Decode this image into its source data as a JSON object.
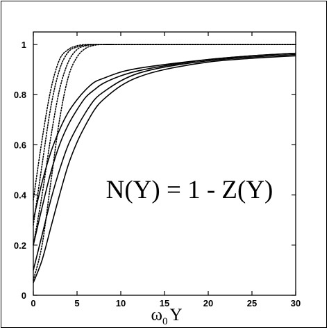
{
  "chart_data": {
    "type": "line",
    "title": "",
    "annotation": "N(Y) = 1 - Z(Y)",
    "xlabel": {
      "main": "ω",
      "sub": "0",
      "suffix": "Y"
    },
    "ylabel": "",
    "xlim": [
      0,
      30
    ],
    "ylim": [
      0,
      1.05
    ],
    "x_ticks": [
      0,
      5,
      10,
      15,
      20,
      25,
      30
    ],
    "y_ticks": [
      0,
      0.2,
      0.4,
      0.6,
      0.8,
      1
    ],
    "y_tick_labels": [
      "0",
      "0.2",
      "0.4",
      "0.6",
      "0.8",
      "1"
    ],
    "grid": false,
    "legend": "none",
    "series": [
      {
        "style": "dotted",
        "x": [
          0,
          1,
          2,
          3,
          4,
          5,
          6,
          7,
          8,
          9,
          10,
          30
        ],
        "y": [
          0.38,
          0.62,
          0.82,
          0.94,
          0.98,
          0.995,
          1,
          1,
          1,
          1,
          1,
          1
        ]
      },
      {
        "style": "dotted",
        "x": [
          0,
          1,
          2,
          3,
          4,
          5,
          6,
          7,
          8,
          9,
          10,
          30
        ],
        "y": [
          0.28,
          0.52,
          0.75,
          0.9,
          0.97,
          0.99,
          0.998,
          1,
          1,
          1,
          1,
          1
        ]
      },
      {
        "style": "dotted",
        "x": [
          0,
          1,
          2,
          3,
          4,
          5,
          6,
          7,
          8,
          9,
          10,
          30
        ],
        "y": [
          0.2,
          0.4,
          0.63,
          0.82,
          0.93,
          0.98,
          0.995,
          1,
          1,
          1,
          1,
          1
        ]
      },
      {
        "style": "dotted",
        "x": [
          0,
          1,
          2,
          3,
          4,
          5,
          6,
          7,
          8,
          9,
          10,
          30
        ],
        "y": [
          0.06,
          0.2,
          0.45,
          0.7,
          0.87,
          0.95,
          0.985,
          0.997,
          1,
          1,
          1,
          1
        ]
      },
      {
        "style": "solid",
        "x": [
          0,
          1,
          2,
          3,
          4,
          5,
          6,
          7,
          8,
          10,
          12,
          15,
          20,
          25,
          30
        ],
        "y": [
          0.3,
          0.45,
          0.57,
          0.66,
          0.73,
          0.78,
          0.82,
          0.85,
          0.865,
          0.89,
          0.905,
          0.92,
          0.94,
          0.955,
          0.965
        ]
      },
      {
        "style": "solid",
        "x": [
          0,
          1,
          2,
          3,
          4,
          5,
          6,
          7,
          8,
          10,
          12,
          15,
          20,
          25,
          30
        ],
        "y": [
          0.2,
          0.35,
          0.49,
          0.6,
          0.68,
          0.74,
          0.79,
          0.82,
          0.845,
          0.875,
          0.895,
          0.915,
          0.94,
          0.955,
          0.965
        ]
      },
      {
        "style": "solid",
        "x": [
          0,
          1,
          2,
          3,
          4,
          5,
          6,
          7,
          8,
          10,
          12,
          15,
          20,
          25,
          30
        ],
        "y": [
          0.1,
          0.24,
          0.38,
          0.5,
          0.6,
          0.67,
          0.73,
          0.78,
          0.81,
          0.855,
          0.885,
          0.91,
          0.935,
          0.95,
          0.96
        ]
      },
      {
        "style": "solid",
        "x": [
          0,
          1,
          2,
          3,
          4,
          5,
          6,
          7,
          8,
          10,
          12,
          15,
          20,
          25,
          30
        ],
        "y": [
          0.05,
          0.14,
          0.27,
          0.4,
          0.52,
          0.61,
          0.68,
          0.74,
          0.78,
          0.835,
          0.87,
          0.9,
          0.93,
          0.945,
          0.955
        ]
      }
    ]
  }
}
